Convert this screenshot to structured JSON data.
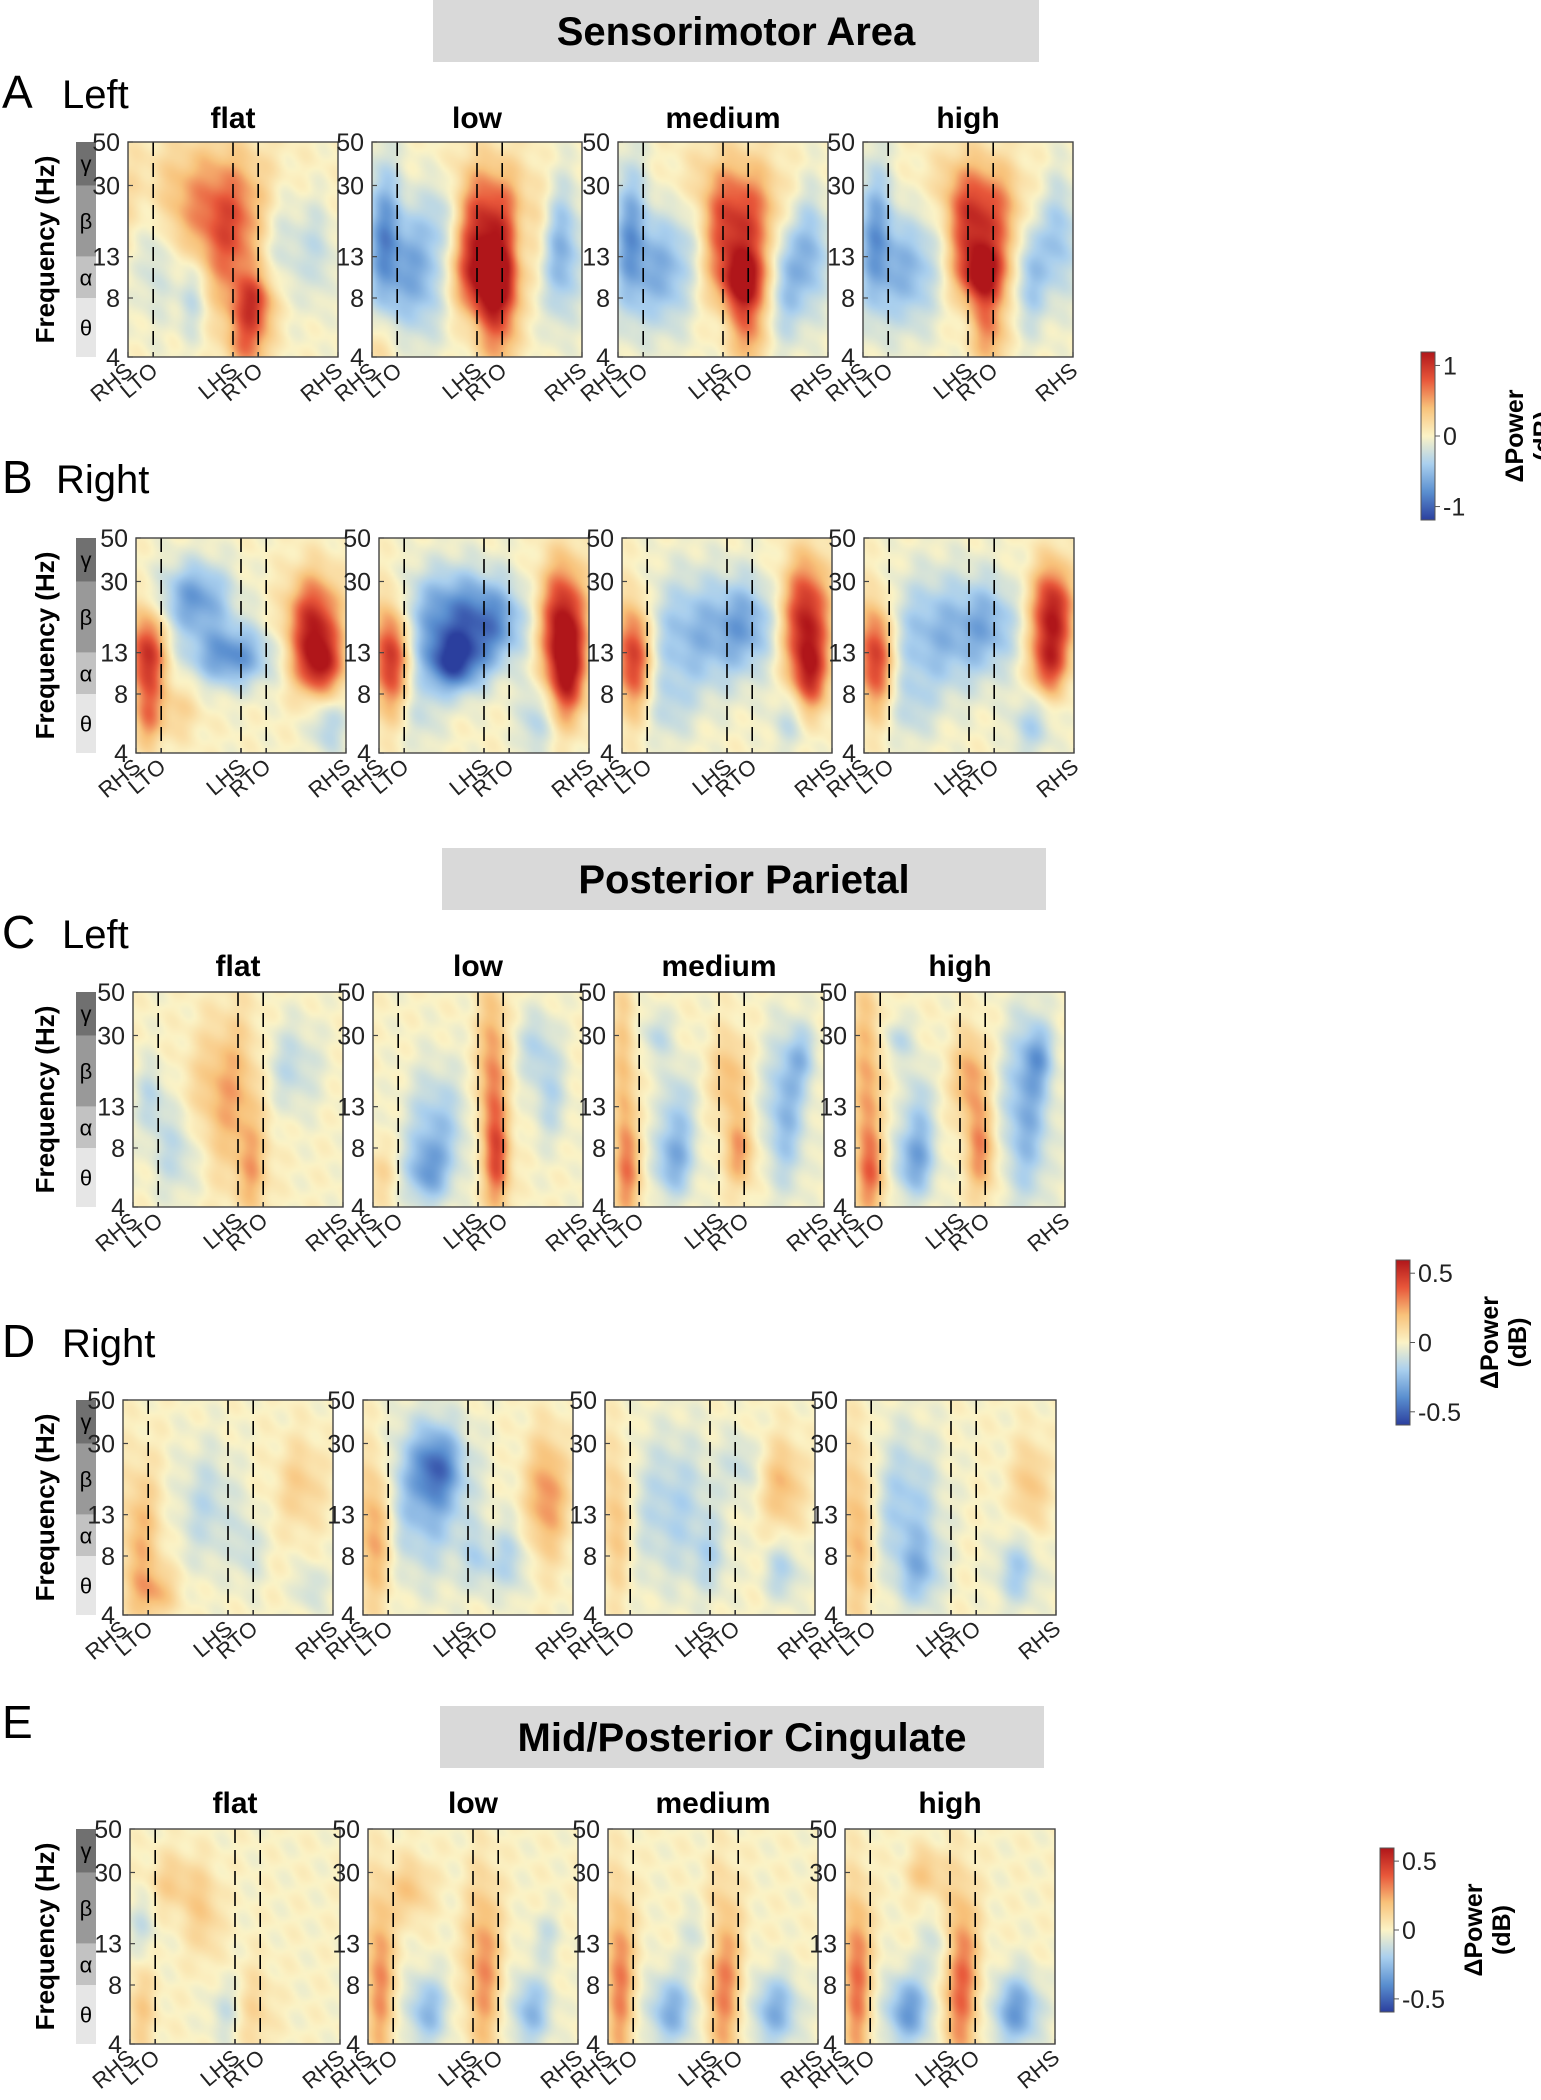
{
  "figure": {
    "type": "multi-panel time-frequency heatmaps"
  },
  "sections": [
    {
      "title": "Sensorimotor Area"
    },
    {
      "title": "Posterior Parietal"
    },
    {
      "title": "Mid/Posterior Cingulate"
    }
  ],
  "rows": [
    {
      "letter": "A",
      "side": "Left",
      "section": 0
    },
    {
      "letter": "B",
      "side": "Right",
      "section": 0
    },
    {
      "letter": "C",
      "side": "Left",
      "section": 1
    },
    {
      "letter": "D",
      "side": "Right",
      "section": 1
    },
    {
      "letter": "E",
      "side": "",
      "section": 2
    }
  ],
  "conditions": [
    "flat",
    "low",
    "medium",
    "high"
  ],
  "axes": {
    "ylabel": "Frequency (Hz)",
    "yticks": [
      "50",
      "30",
      "13",
      "8",
      "4"
    ],
    "ytick_values": [
      50,
      30,
      13,
      8,
      4
    ],
    "ylim": [
      4,
      50
    ],
    "yscale": "log",
    "xticks": [
      "RHS",
      "LTO",
      "LHS",
      "RTO",
      "RHS"
    ],
    "xtick_values": [
      0.0,
      0.12,
      0.5,
      0.62,
      1.0
    ],
    "dashed_lines_at": [
      0.12,
      0.5,
      0.62
    ],
    "bands": [
      {
        "symbol": "γ",
        "range": [
          30,
          50
        ],
        "color": "#707070"
      },
      {
        "symbol": "β",
        "range": [
          13,
          30
        ],
        "color": "#999999"
      },
      {
        "symbol": "α",
        "range": [
          8,
          13
        ],
        "color": "#c2c2c2"
      },
      {
        "symbol": "θ",
        "range": [
          4,
          8
        ],
        "color": "#e6e6e6"
      }
    ]
  },
  "colorbars": [
    {
      "label_line1": "ΔPower",
      "label_line2": "(dB)",
      "ticks": [
        "1",
        "0",
        "-1"
      ],
      "range": [
        -1,
        1
      ],
      "rows": [
        "A",
        "B"
      ]
    },
    {
      "label_line1": "ΔPower",
      "label_line2": "(dB)",
      "ticks": [
        "0.5",
        "0",
        "-0.5"
      ],
      "range": [
        -0.5,
        0.5
      ],
      "rows": [
        "C",
        "D"
      ]
    },
    {
      "label_line1": "ΔPower",
      "label_line2": "(dB)",
      "ticks": [
        "0.5",
        "0",
        "-0.5"
      ],
      "range": [
        -0.5,
        0.5
      ],
      "rows": [
        "E"
      ]
    }
  ],
  "colormap": [
    "#2b3f9e",
    "#5a8fd0",
    "#a9cfee",
    "#fbf3c6",
    "#f8c27a",
    "#e8573a",
    "#b0161a"
  ],
  "chart_data": [
    {
      "type": "heatmap",
      "row": "A",
      "condition": "flat",
      "blobs": [
        [
          0.38,
          0.72,
          0.28,
          0.2,
          0.45
        ],
        [
          0.48,
          0.5,
          0.1,
          0.22,
          0.45
        ],
        [
          0.6,
          0.25,
          0.07,
          0.1,
          0.7
        ],
        [
          0.57,
          0.05,
          0.07,
          0.1,
          0.5
        ],
        [
          0.12,
          0.52,
          0.07,
          0.22,
          -0.3
        ],
        [
          0.75,
          0.58,
          0.1,
          0.2,
          -0.3
        ],
        [
          0.92,
          0.5,
          0.05,
          0.18,
          -0.2
        ],
        [
          0.3,
          0.3,
          0.05,
          0.15,
          -0.3
        ]
      ]
    },
    {
      "type": "heatmap",
      "row": "A",
      "condition": "low",
      "blobs": [
        [
          0.55,
          0.6,
          0.18,
          0.2,
          0.9
        ],
        [
          0.57,
          0.35,
          0.1,
          0.12,
          0.9
        ],
        [
          0.6,
          0.12,
          0.07,
          0.15,
          0.5
        ],
        [
          0.05,
          0.55,
          0.06,
          0.25,
          -0.6
        ],
        [
          0.22,
          0.42,
          0.1,
          0.22,
          -0.6
        ],
        [
          0.35,
          0.65,
          0.07,
          0.15,
          -0.5
        ],
        [
          0.72,
          0.5,
          0.05,
          0.2,
          -0.4
        ],
        [
          0.9,
          0.5,
          0.07,
          0.22,
          -0.6
        ],
        [
          0.03,
          0.05,
          0.07,
          0.1,
          0.2
        ]
      ]
    },
    {
      "type": "heatmap",
      "row": "A",
      "condition": "medium",
      "blobs": [
        [
          0.55,
          0.62,
          0.18,
          0.2,
          0.85
        ],
        [
          0.6,
          0.35,
          0.08,
          0.1,
          0.85
        ],
        [
          0.62,
          0.12,
          0.06,
          0.13,
          0.5
        ],
        [
          0.05,
          0.55,
          0.06,
          0.25,
          -0.55
        ],
        [
          0.22,
          0.42,
          0.1,
          0.2,
          -0.55
        ],
        [
          0.36,
          0.6,
          0.07,
          0.15,
          -0.4
        ],
        [
          0.8,
          0.42,
          0.07,
          0.22,
          -0.55
        ],
        [
          0.93,
          0.5,
          0.06,
          0.2,
          -0.45
        ]
      ]
    },
    {
      "type": "heatmap",
      "row": "A",
      "condition": "high",
      "blobs": [
        [
          0.52,
          0.65,
          0.16,
          0.18,
          0.9
        ],
        [
          0.57,
          0.38,
          0.08,
          0.1,
          0.9
        ],
        [
          0.6,
          0.12,
          0.06,
          0.13,
          0.5
        ],
        [
          0.05,
          0.55,
          0.06,
          0.25,
          -0.55
        ],
        [
          0.22,
          0.42,
          0.1,
          0.2,
          -0.5
        ],
        [
          0.36,
          0.62,
          0.07,
          0.15,
          -0.4
        ],
        [
          0.8,
          0.42,
          0.06,
          0.2,
          -0.45
        ],
        [
          0.94,
          0.55,
          0.06,
          0.2,
          -0.4
        ]
      ]
    },
    {
      "type": "heatmap",
      "row": "B",
      "condition": "flat",
      "blobs": [
        [
          0.05,
          0.45,
          0.06,
          0.15,
          0.9
        ],
        [
          0.05,
          0.15,
          0.05,
          0.1,
          0.4
        ],
        [
          0.28,
          0.72,
          0.12,
          0.12,
          -0.6
        ],
        [
          0.45,
          0.45,
          0.14,
          0.1,
          -0.65
        ],
        [
          0.85,
          0.6,
          0.09,
          0.16,
          0.9
        ],
        [
          0.88,
          0.4,
          0.08,
          0.1,
          0.7
        ],
        [
          0.2,
          0.2,
          0.08,
          0.1,
          0.2
        ],
        [
          0.92,
          0.12,
          0.06,
          0.1,
          -0.3
        ]
      ]
    },
    {
      "type": "heatmap",
      "row": "B",
      "condition": "low",
      "blobs": [
        [
          0.05,
          0.45,
          0.06,
          0.18,
          0.9
        ],
        [
          0.33,
          0.65,
          0.16,
          0.15,
          -0.6
        ],
        [
          0.35,
          0.42,
          0.1,
          0.1,
          -0.85
        ],
        [
          0.55,
          0.6,
          0.12,
          0.14,
          -0.5
        ],
        [
          0.88,
          0.6,
          0.08,
          0.2,
          1.0
        ],
        [
          0.9,
          0.35,
          0.06,
          0.15,
          0.7
        ],
        [
          0.2,
          0.18,
          0.07,
          0.12,
          -0.2
        ],
        [
          0.75,
          0.15,
          0.06,
          0.12,
          -0.3
        ]
      ]
    },
    {
      "type": "heatmap",
      "row": "B",
      "condition": "medium",
      "blobs": [
        [
          0.05,
          0.45,
          0.06,
          0.18,
          0.9
        ],
        [
          0.35,
          0.55,
          0.18,
          0.2,
          -0.45
        ],
        [
          0.6,
          0.6,
          0.1,
          0.15,
          -0.4
        ],
        [
          0.88,
          0.62,
          0.08,
          0.2,
          0.95
        ],
        [
          0.9,
          0.35,
          0.06,
          0.12,
          0.6
        ],
        [
          0.22,
          0.2,
          0.08,
          0.12,
          -0.2
        ],
        [
          0.8,
          0.15,
          0.06,
          0.1,
          -0.25
        ]
      ]
    },
    {
      "type": "heatmap",
      "row": "B",
      "condition": "high",
      "blobs": [
        [
          0.05,
          0.45,
          0.06,
          0.18,
          0.9
        ],
        [
          0.35,
          0.55,
          0.18,
          0.2,
          -0.45
        ],
        [
          0.6,
          0.6,
          0.1,
          0.15,
          -0.35
        ],
        [
          0.9,
          0.65,
          0.07,
          0.16,
          1.0
        ],
        [
          0.88,
          0.4,
          0.06,
          0.1,
          0.6
        ],
        [
          0.22,
          0.2,
          0.08,
          0.12,
          -0.2
        ],
        [
          0.8,
          0.12,
          0.07,
          0.1,
          -0.3
        ]
      ]
    },
    {
      "type": "heatmap",
      "row": "C",
      "condition": "flat",
      "blobs": [
        [
          0.08,
          0.5,
          0.05,
          0.12,
          -0.25
        ],
        [
          0.2,
          0.25,
          0.08,
          0.15,
          -0.25
        ],
        [
          0.38,
          0.55,
          0.1,
          0.2,
          0.2
        ],
        [
          0.5,
          0.5,
          0.1,
          0.3,
          0.3
        ],
        [
          0.57,
          0.15,
          0.05,
          0.15,
          0.3
        ],
        [
          0.75,
          0.65,
          0.1,
          0.15,
          -0.25
        ]
      ]
    },
    {
      "type": "heatmap",
      "row": "C",
      "condition": "low",
      "blobs": [
        [
          0.3,
          0.35,
          0.1,
          0.2,
          -0.4
        ],
        [
          0.25,
          0.15,
          0.07,
          0.1,
          -0.4
        ],
        [
          0.57,
          0.55,
          0.05,
          0.35,
          0.55
        ],
        [
          0.6,
          0.2,
          0.04,
          0.15,
          0.45
        ],
        [
          0.78,
          0.75,
          0.07,
          0.12,
          -0.25
        ],
        [
          0.85,
          0.5,
          0.06,
          0.15,
          -0.25
        ],
        [
          0.03,
          0.15,
          0.05,
          0.1,
          0.2
        ]
      ]
    },
    {
      "type": "heatmap",
      "row": "C",
      "condition": "medium",
      "blobs": [
        [
          0.04,
          0.5,
          0.04,
          0.4,
          0.35
        ],
        [
          0.07,
          0.15,
          0.05,
          0.15,
          0.35
        ],
        [
          0.28,
          0.2,
          0.07,
          0.12,
          -0.45
        ],
        [
          0.3,
          0.45,
          0.06,
          0.15,
          -0.3
        ],
        [
          0.55,
          0.6,
          0.06,
          0.15,
          0.35
        ],
        [
          0.6,
          0.25,
          0.05,
          0.12,
          0.45
        ],
        [
          0.82,
          0.45,
          0.07,
          0.25,
          -0.45
        ],
        [
          0.9,
          0.7,
          0.05,
          0.1,
          -0.3
        ],
        [
          0.2,
          0.8,
          0.05,
          0.08,
          -0.25
        ]
      ]
    },
    {
      "type": "heatmap",
      "row": "C",
      "condition": "high",
      "blobs": [
        [
          0.05,
          0.5,
          0.05,
          0.4,
          0.45
        ],
        [
          0.08,
          0.15,
          0.05,
          0.12,
          0.35
        ],
        [
          0.28,
          0.2,
          0.07,
          0.12,
          -0.5
        ],
        [
          0.3,
          0.45,
          0.05,
          0.15,
          -0.3
        ],
        [
          0.55,
          0.6,
          0.06,
          0.15,
          0.45
        ],
        [
          0.6,
          0.25,
          0.05,
          0.15,
          0.5
        ],
        [
          0.82,
          0.45,
          0.08,
          0.3,
          -0.5
        ],
        [
          0.88,
          0.7,
          0.05,
          0.1,
          -0.35
        ],
        [
          0.2,
          0.78,
          0.05,
          0.07,
          -0.25
        ]
      ]
    },
    {
      "type": "heatmap",
      "row": "D",
      "condition": "flat",
      "blobs": [
        [
          0.08,
          0.35,
          0.07,
          0.25,
          0.35
        ],
        [
          0.15,
          0.1,
          0.08,
          0.08,
          0.3
        ],
        [
          0.4,
          0.5,
          0.1,
          0.2,
          -0.25
        ],
        [
          0.6,
          0.3,
          0.05,
          0.12,
          -0.2
        ],
        [
          0.85,
          0.6,
          0.08,
          0.15,
          0.25
        ],
        [
          0.9,
          0.12,
          0.05,
          0.08,
          -0.2
        ]
      ]
    },
    {
      "type": "heatmap",
      "row": "D",
      "condition": "low",
      "blobs": [
        [
          0.05,
          0.4,
          0.06,
          0.25,
          0.5
        ],
        [
          0.3,
          0.55,
          0.15,
          0.25,
          -0.45
        ],
        [
          0.35,
          0.7,
          0.08,
          0.12,
          -0.5
        ],
        [
          0.88,
          0.55,
          0.07,
          0.2,
          0.5
        ],
        [
          0.7,
          0.25,
          0.06,
          0.12,
          -0.3
        ],
        [
          0.55,
          0.25,
          0.05,
          0.1,
          -0.25
        ]
      ]
    },
    {
      "type": "heatmap",
      "row": "D",
      "condition": "medium",
      "blobs": [
        [
          0.05,
          0.45,
          0.05,
          0.25,
          0.35
        ],
        [
          0.32,
          0.5,
          0.15,
          0.25,
          -0.3
        ],
        [
          0.65,
          0.7,
          0.06,
          0.1,
          -0.2
        ],
        [
          0.85,
          0.6,
          0.07,
          0.15,
          0.35
        ],
        [
          0.85,
          0.2,
          0.06,
          0.1,
          -0.3
        ],
        [
          0.5,
          0.25,
          0.06,
          0.12,
          -0.2
        ]
      ]
    },
    {
      "type": "heatmap",
      "row": "D",
      "condition": "high",
      "blobs": [
        [
          0.05,
          0.4,
          0.06,
          0.3,
          0.4
        ],
        [
          0.28,
          0.5,
          0.12,
          0.25,
          -0.35
        ],
        [
          0.35,
          0.2,
          0.07,
          0.12,
          -0.35
        ],
        [
          0.88,
          0.6,
          0.06,
          0.15,
          0.3
        ],
        [
          0.82,
          0.2,
          0.07,
          0.12,
          -0.35
        ]
      ]
    },
    {
      "type": "heatmap",
      "row": "E",
      "condition": "flat",
      "blobs": [
        [
          0.2,
          0.75,
          0.08,
          0.1,
          0.25
        ],
        [
          0.35,
          0.6,
          0.06,
          0.15,
          0.25
        ],
        [
          0.05,
          0.15,
          0.05,
          0.15,
          0.25
        ],
        [
          0.6,
          0.15,
          0.06,
          0.15,
          0.2
        ],
        [
          0.45,
          0.15,
          0.05,
          0.1,
          -0.2
        ],
        [
          0.05,
          0.55,
          0.05,
          0.1,
          -0.2
        ]
      ]
    },
    {
      "type": "heatmap",
      "row": "E",
      "condition": "low",
      "blobs": [
        [
          0.05,
          0.3,
          0.05,
          0.3,
          0.5
        ],
        [
          0.55,
          0.35,
          0.06,
          0.3,
          0.5
        ],
        [
          0.28,
          0.15,
          0.07,
          0.12,
          -0.45
        ],
        [
          0.78,
          0.15,
          0.07,
          0.12,
          -0.45
        ],
        [
          0.2,
          0.72,
          0.07,
          0.1,
          0.3
        ],
        [
          0.85,
          0.5,
          0.05,
          0.08,
          -0.2
        ]
      ]
    },
    {
      "type": "heatmap",
      "row": "E",
      "condition": "medium",
      "blobs": [
        [
          0.05,
          0.3,
          0.05,
          0.3,
          0.55
        ],
        [
          0.55,
          0.3,
          0.06,
          0.3,
          0.55
        ],
        [
          0.3,
          0.15,
          0.08,
          0.12,
          -0.5
        ],
        [
          0.8,
          0.15,
          0.08,
          0.12,
          -0.5
        ],
        [
          0.45,
          0.5,
          0.07,
          0.1,
          -0.2
        ]
      ]
    },
    {
      "type": "heatmap",
      "row": "E",
      "condition": "high",
      "blobs": [
        [
          0.05,
          0.3,
          0.05,
          0.3,
          0.6
        ],
        [
          0.55,
          0.3,
          0.06,
          0.3,
          0.65
        ],
        [
          0.3,
          0.15,
          0.08,
          0.12,
          -0.6
        ],
        [
          0.82,
          0.15,
          0.08,
          0.12,
          -0.6
        ],
        [
          0.38,
          0.8,
          0.06,
          0.08,
          0.3
        ],
        [
          0.45,
          0.45,
          0.06,
          0.1,
          -0.25
        ]
      ]
    }
  ]
}
